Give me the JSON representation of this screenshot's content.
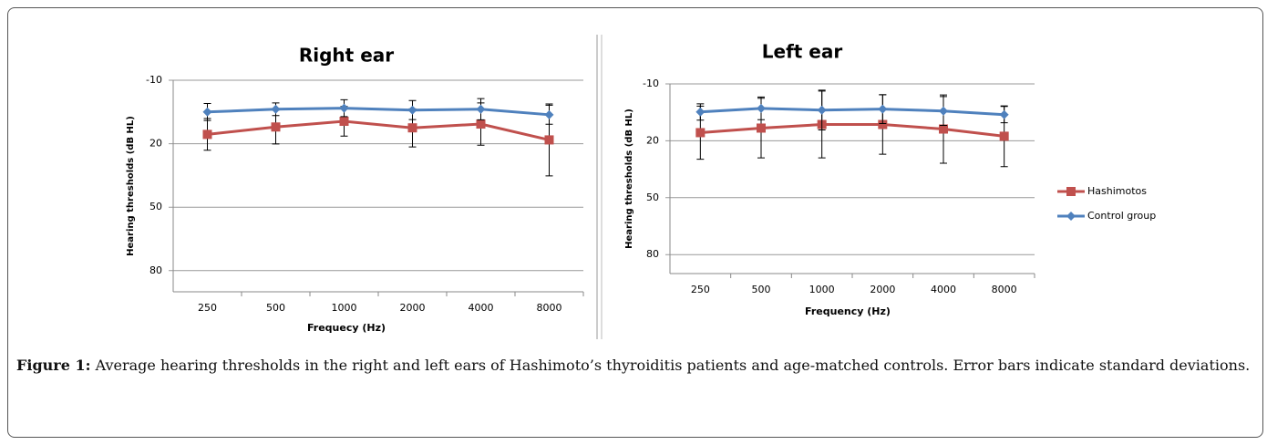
{
  "chart_data": [
    {
      "type": "line",
      "title": "Right ear",
      "xlabel": "Frequecy (Hz)",
      "ylabel": "Hearing thresholds (dB HL)",
      "categories": [
        "250",
        "500",
        "1000",
        "2000",
        "4000",
        "8000"
      ],
      "ylim": [
        -10,
        90
      ],
      "yticks": [
        -10,
        20,
        50,
        80
      ],
      "y_inverted": true,
      "grid": true,
      "series": [
        {
          "color": "#c0504d",
          "marker": "square",
          "values": [
            15.6,
            12.1,
            9.4,
            12.5,
            10.7,
            18.2
          ],
          "errors": [
            7.5,
            8,
            7,
            9,
            10,
            17
          ]
        },
        {
          "color": "#4f81bd",
          "marker": "diamond",
          "values": [
            5.0,
            3.7,
            3.2,
            4.1,
            3.7,
            6.3
          ],
          "errors": [
            4,
            3,
            4,
            4.5,
            5,
            4.5
          ]
        }
      ]
    },
    {
      "type": "line",
      "title": "Left ear",
      "xlabel": "Frequency (Hz)",
      "ylabel": "Hearing thresholds (dB HL)",
      "categories": [
        "250",
        "500",
        "1000",
        "2000",
        "4000",
        "8000"
      ],
      "ylim": [
        -10,
        90
      ],
      "yticks": [
        -10,
        20,
        50,
        80
      ],
      "y_inverted": true,
      "grid": true,
      "legend": "right",
      "series": [
        {
          "name": "Hashimotos",
          "color": "#c0504d",
          "marker": "square",
          "values": [
            15.7,
            13.3,
            11.4,
            11.4,
            13.8,
            17.6
          ],
          "errors": [
            14,
            15.7,
            17.6,
            15.7,
            18,
            16
          ]
        },
        {
          "name": "Control group",
          "color": "#4f81bd",
          "marker": "diamond",
          "values": [
            4.8,
            2.9,
            3.8,
            3.3,
            4.3,
            6.2
          ],
          "errors": [
            4.3,
            6,
            10.5,
            7.6,
            7.6,
            4.3
          ]
        }
      ]
    }
  ],
  "caption": {
    "label": "Figure 1:",
    "text": "Average hearing thresholds in the right and left ears of Hashimoto’s thyroiditis patients and age-matched controls. Error bars indicate standard deviations."
  }
}
